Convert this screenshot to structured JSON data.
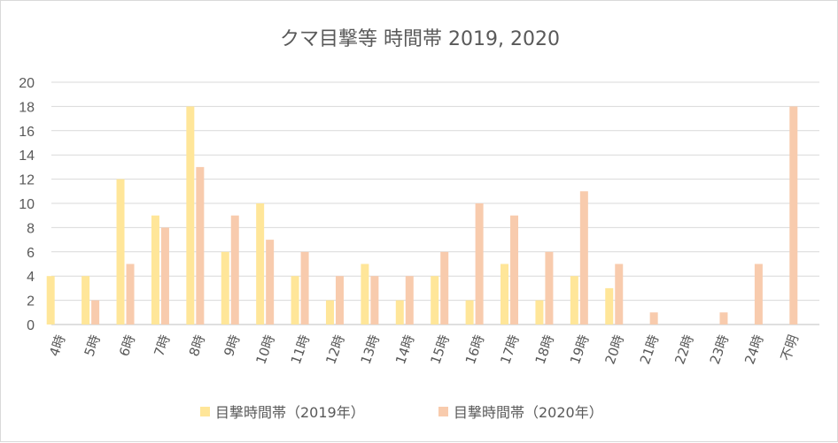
{
  "chart_data": {
    "type": "bar",
    "title": "クマ目撃等 時間帯 2019, 2020",
    "xlabel": "",
    "ylabel": "",
    "ylim": [
      0,
      20
    ],
    "yticks": [
      0,
      2,
      4,
      6,
      8,
      10,
      12,
      14,
      16,
      18,
      20
    ],
    "grid": true,
    "legend": "bottom",
    "categories": [
      "4時",
      "5時",
      "6時",
      "7時",
      "8時",
      "9時",
      "10時",
      "11時",
      "12時",
      "13時",
      "14時",
      "15時",
      "16時",
      "17時",
      "18時",
      "19時",
      "20時",
      "21時",
      "22時",
      "23時",
      "24時",
      "不明"
    ],
    "series": [
      {
        "name": "目撃時間帯（2019年）",
        "color": "#ffe699",
        "values": [
          4,
          4,
          12,
          9,
          18,
          6,
          10,
          4,
          2,
          5,
          2,
          4,
          2,
          5,
          2,
          4,
          3,
          0,
          0,
          0,
          0,
          0
        ]
      },
      {
        "name": "目撃時間帯（2020年）",
        "color": "#f8cbad",
        "values": [
          0,
          2,
          5,
          8,
          13,
          9,
          7,
          6,
          4,
          4,
          4,
          6,
          10,
          9,
          6,
          11,
          5,
          1,
          0,
          1,
          5,
          18
        ]
      }
    ]
  }
}
